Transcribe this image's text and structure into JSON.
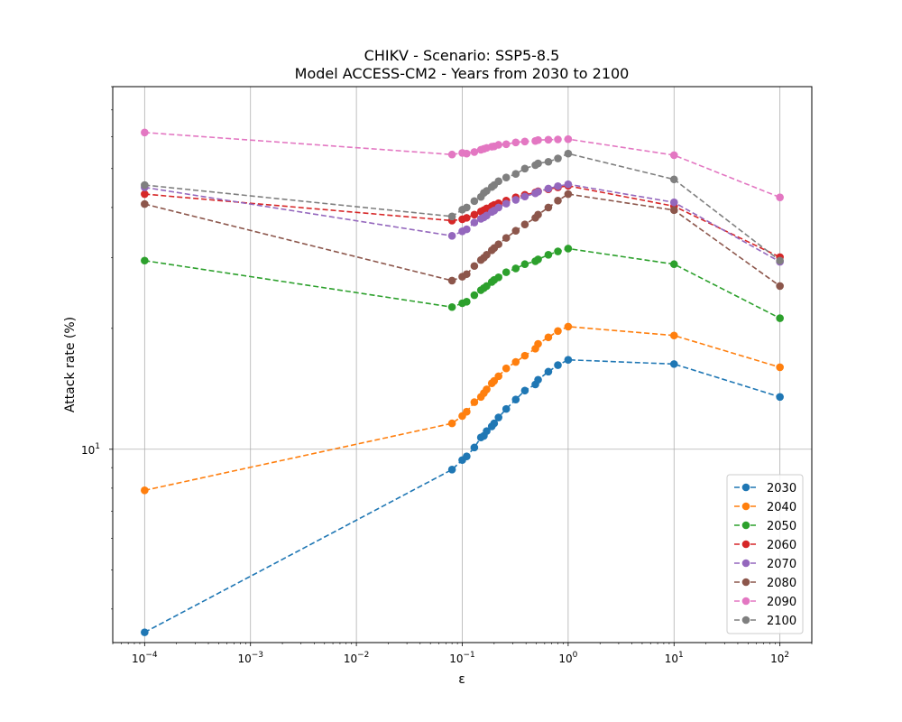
{
  "chart_data": {
    "type": "line",
    "title_line1": "CHIKV - Scenario: SSP5-8.5",
    "title_line2": "Model ACCESS-CM2 - Years from 2030 to 2100",
    "xlabel": "ε",
    "ylabel": "Attack rate (%)",
    "xscale": "log",
    "yscale": "log",
    "xlim": [
      5e-05,
      200
    ],
    "ylim": [
      3.3,
      80
    ],
    "xticks": [
      {
        "value": 0.0001,
        "base": "10",
        "exp": "−4"
      },
      {
        "value": 0.001,
        "base": "10",
        "exp": "−3"
      },
      {
        "value": 0.01,
        "base": "10",
        "exp": "−2"
      },
      {
        "value": 0.1,
        "base": "10",
        "exp": "−1"
      },
      {
        "value": 1,
        "base": "10",
        "exp": "0"
      },
      {
        "value": 10,
        "base": "10",
        "exp": "1"
      },
      {
        "value": 100,
        "base": "10",
        "exp": "2"
      }
    ],
    "yticks": [
      {
        "value": 10,
        "base": "10",
        "exp": "1"
      }
    ],
    "grid": true,
    "legend_position": "lower right",
    "x": [
      0.0001,
      0.08,
      0.1,
      0.11,
      0.13,
      0.15,
      0.16,
      0.17,
      0.19,
      0.2,
      0.22,
      0.26,
      0.32,
      0.39,
      0.49,
      0.52,
      0.65,
      0.8,
      1,
      10,
      100
    ],
    "series": [
      {
        "name": "2030",
        "color": "#1f77b4",
        "values": [
          3.5,
          8.9,
          9.4,
          9.6,
          10.1,
          10.7,
          10.8,
          11.1,
          11.4,
          11.6,
          12.0,
          12.6,
          13.3,
          14.0,
          14.5,
          14.9,
          15.6,
          16.2,
          16.7,
          16.3,
          13.5
        ]
      },
      {
        "name": "2040",
        "color": "#ff7f0e",
        "values": [
          7.9,
          11.6,
          12.1,
          12.4,
          13.1,
          13.5,
          13.8,
          14.1,
          14.6,
          14.8,
          15.2,
          15.9,
          16.5,
          17.1,
          17.8,
          18.3,
          19.0,
          19.7,
          20.2,
          19.2,
          16.0
        ]
      },
      {
        "name": "2050",
        "color": "#2ca02c",
        "values": [
          29.5,
          22.6,
          23.1,
          23.3,
          24.2,
          24.9,
          25.2,
          25.5,
          26.1,
          26.4,
          26.8,
          27.6,
          28.2,
          28.9,
          29.4,
          29.7,
          30.5,
          31.1,
          31.6,
          28.9,
          21.2
        ]
      },
      {
        "name": "2060",
        "color": "#d62728",
        "values": [
          43.2,
          37.1,
          37.4,
          37.7,
          38.4,
          39.1,
          39.4,
          39.8,
          40.3,
          40.6,
          41.0,
          41.6,
          42.4,
          43.0,
          43.6,
          43.9,
          44.4,
          44.9,
          45.3,
          40.3,
          30.1
        ]
      },
      {
        "name": "2070",
        "color": "#9467bd",
        "values": [
          44.9,
          34.0,
          34.9,
          35.3,
          36.7,
          37.5,
          37.8,
          38.2,
          39.0,
          39.3,
          40.0,
          40.9,
          41.8,
          42.6,
          43.4,
          43.8,
          44.6,
          45.2,
          45.7,
          41.2,
          29.3
        ]
      },
      {
        "name": "2080",
        "color": "#8c564b",
        "values": [
          40.8,
          26.3,
          26.9,
          27.3,
          28.6,
          29.6,
          30.0,
          30.5,
          31.3,
          31.7,
          32.4,
          33.6,
          35.0,
          36.3,
          37.7,
          38.4,
          40.0,
          41.6,
          43.2,
          39.4,
          25.5
        ]
      },
      {
        "name": "2090",
        "color": "#e377c2",
        "values": [
          61.5,
          54.2,
          54.7,
          54.5,
          55.0,
          55.7,
          56.0,
          56.3,
          56.7,
          56.8,
          57.3,
          57.5,
          58.1,
          58.4,
          58.6,
          58.9,
          59.0,
          59.1,
          59.2,
          54.0,
          42.4
        ]
      },
      {
        "name": "2100",
        "color": "#7f7f7f",
        "values": [
          45.5,
          38.0,
          39.5,
          40.0,
          41.5,
          42.5,
          43.5,
          44.0,
          45.0,
          45.5,
          46.5,
          47.5,
          48.5,
          50.0,
          51.0,
          51.5,
          52.0,
          53.0,
          54.5,
          47.0,
          29.5
        ]
      }
    ]
  }
}
